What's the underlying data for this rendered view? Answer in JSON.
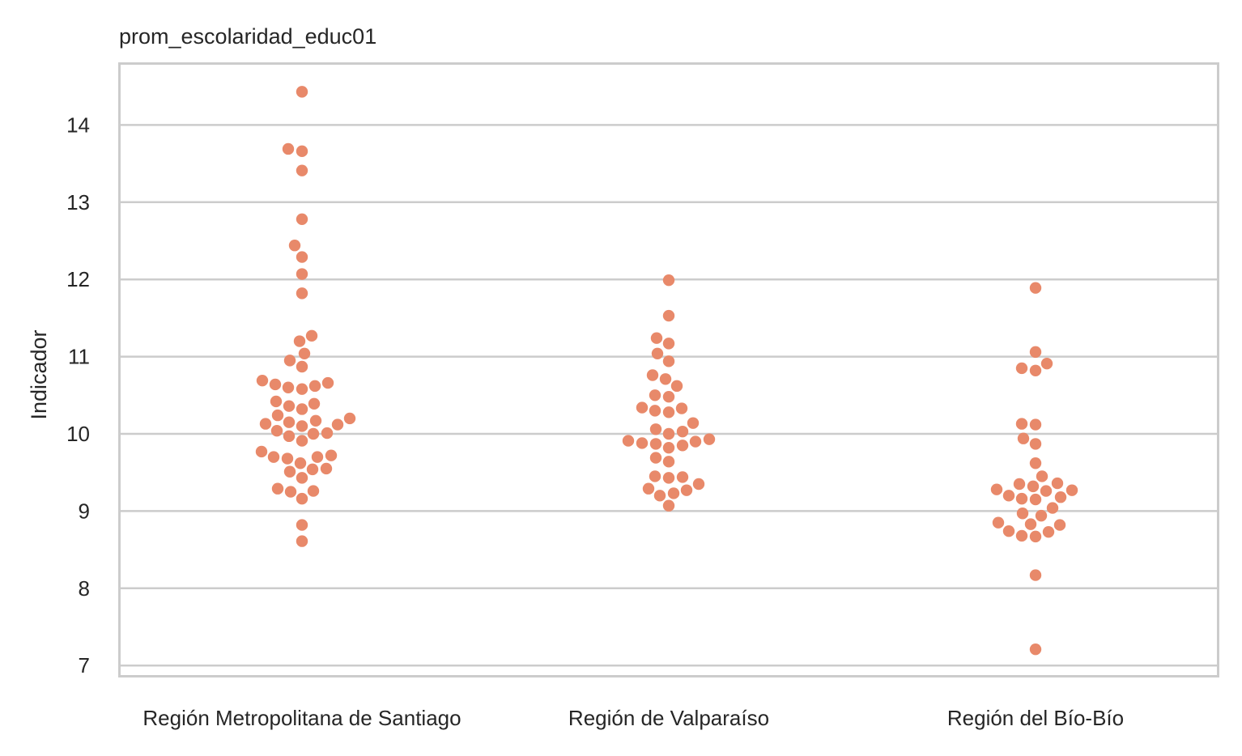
{
  "chart_data": {
    "type": "scatter",
    "title": "prom_escolaridad_educ01",
    "xlabel": "",
    "ylabel": "Indicador",
    "ylim": [
      6.9,
      14.8
    ],
    "yticks": [
      "7",
      "8",
      "9",
      "10",
      "11",
      "12",
      "13",
      "14"
    ],
    "grid": "horizontal",
    "point_color": "#e8896a",
    "categories": [
      "Región Metropolitana de Santiago",
      "Región de Valparaíso",
      "Región del Bío-Bío"
    ],
    "series": [
      {
        "category": "Región Metropolitana de Santiago",
        "values": [
          14.43,
          13.69,
          13.66,
          13.41,
          12.78,
          12.44,
          12.29,
          12.07,
          11.82,
          11.27,
          11.2,
          11.04,
          10.95,
          10.87,
          10.69,
          10.66,
          10.64,
          10.62,
          10.6,
          10.58,
          10.42,
          10.39,
          10.36,
          10.32,
          10.24,
          10.2,
          10.17,
          10.15,
          10.13,
          10.12,
          10.1,
          10.04,
          10.01,
          10.0,
          9.97,
          9.91,
          9.77,
          9.7,
          9.7,
          9.68,
          9.72,
          9.62,
          9.55,
          9.54,
          9.51,
          9.43,
          9.29,
          9.26,
          9.25,
          9.16,
          8.82,
          8.61
        ]
      },
      {
        "category": "Región de Valparaíso",
        "values": [
          11.99,
          11.53,
          11.24,
          11.17,
          11.04,
          10.94,
          10.76,
          10.71,
          10.62,
          10.5,
          10.48,
          10.34,
          10.33,
          10.3,
          10.28,
          10.14,
          10.06,
          10.03,
          10.0,
          9.93,
          9.91,
          9.9,
          9.88,
          9.87,
          9.85,
          9.82,
          9.69,
          9.64,
          9.45,
          9.44,
          9.43,
          9.35,
          9.29,
          9.27,
          9.23,
          9.2,
          9.07
        ]
      },
      {
        "category": "Región del Bío-Bío",
        "values": [
          11.89,
          11.06,
          10.91,
          10.85,
          10.82,
          10.13,
          10.12,
          9.94,
          9.87,
          9.62,
          9.45,
          9.36,
          9.35,
          9.32,
          9.28,
          9.27,
          9.26,
          9.2,
          9.18,
          9.16,
          9.15,
          9.04,
          8.97,
          8.94,
          8.85,
          8.83,
          8.82,
          8.74,
          8.73,
          8.68,
          8.67,
          8.17,
          7.21
        ]
      }
    ]
  }
}
